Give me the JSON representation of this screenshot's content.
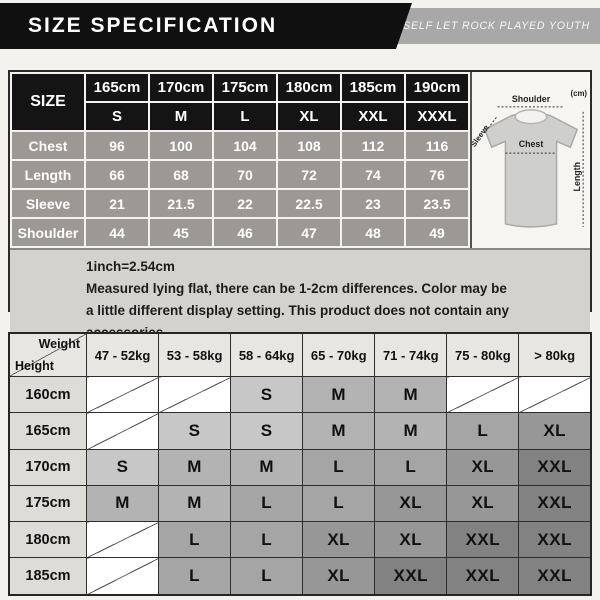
{
  "header": {
    "title": "SIZE  SPECIFICATION",
    "slogan": "NO ROCK AND ROLL NOT YOUTH, BELIEVE IN YOURSELF LET ROCK PLAYED YOUTH"
  },
  "size_table": {
    "corner_label": "SIZE",
    "height_headers": [
      "165cm",
      "170cm",
      "175cm",
      "180cm",
      "185cm",
      "190cm"
    ],
    "size_headers": [
      "S",
      "M",
      "L",
      "XL",
      "XXL",
      "XXXL"
    ],
    "rows": [
      {
        "label": "Chest",
        "values": [
          "96",
          "100",
          "104",
          "108",
          "112",
          "116"
        ]
      },
      {
        "label": "Length",
        "values": [
          "66",
          "68",
          "70",
          "72",
          "74",
          "76"
        ]
      },
      {
        "label": "Sleeve",
        "values": [
          "21",
          "21.5",
          "22",
          "22.5",
          "23",
          "23.5"
        ]
      },
      {
        "label": "Shoulder",
        "values": [
          "44",
          "45",
          "46",
          "47",
          "48",
          "49"
        ]
      }
    ]
  },
  "diagram": {
    "unit_label": "(cm)",
    "shoulder_label": "Shoulder",
    "sleeve_label": "Sleeve",
    "chest_label": "Chest",
    "length_label": "Length"
  },
  "notes": {
    "lines": [
      "1inch=2.54cm",
      "Measured lying flat, there can be 1-2cm differences. Color may be",
      "a little different display setting. This product does not contain any",
      "accessories."
    ]
  },
  "fit_table": {
    "corner_top": "Weight",
    "corner_bottom": "Height",
    "weight_headers": [
      "47 - 52kg",
      "53 - 58kg",
      "58 - 64kg",
      "65 - 70kg",
      "71 - 74kg",
      "75 - 80kg",
      "> 80kg"
    ],
    "rows": [
      {
        "height": "160cm",
        "cells": [
          "",
          "",
          "S",
          "M",
          "M",
          "",
          ""
        ]
      },
      {
        "height": "165cm",
        "cells": [
          "",
          "S",
          "S",
          "M",
          "M",
          "L",
          "XL"
        ]
      },
      {
        "height": "170cm",
        "cells": [
          "S",
          "M",
          "M",
          "L",
          "L",
          "XL",
          "XXL"
        ]
      },
      {
        "height": "175cm",
        "cells": [
          "M",
          "M",
          "L",
          "L",
          "XL",
          "XL",
          "XXL"
        ]
      },
      {
        "height": "180cm",
        "cells": [
          "",
          "L",
          "L",
          "XL",
          "XL",
          "XXL",
          "XXL"
        ]
      },
      {
        "height": "185cm",
        "cells": [
          "",
          "L",
          "L",
          "XL",
          "XXL",
          "XXL",
          "XXL"
        ]
      }
    ]
  },
  "colors": {
    "banner_black": "#101010",
    "banner_gray": "#a8a8a8",
    "spec_row_gray": "#9c9994",
    "notes_bg": "#d3d2ce",
    "size_cell_colors": {
      "S": "#c7c7c7",
      "M": "#b3b3b3",
      "L": "#a5a5a5",
      "XL": "#979797",
      "XXL": "#828282"
    }
  }
}
